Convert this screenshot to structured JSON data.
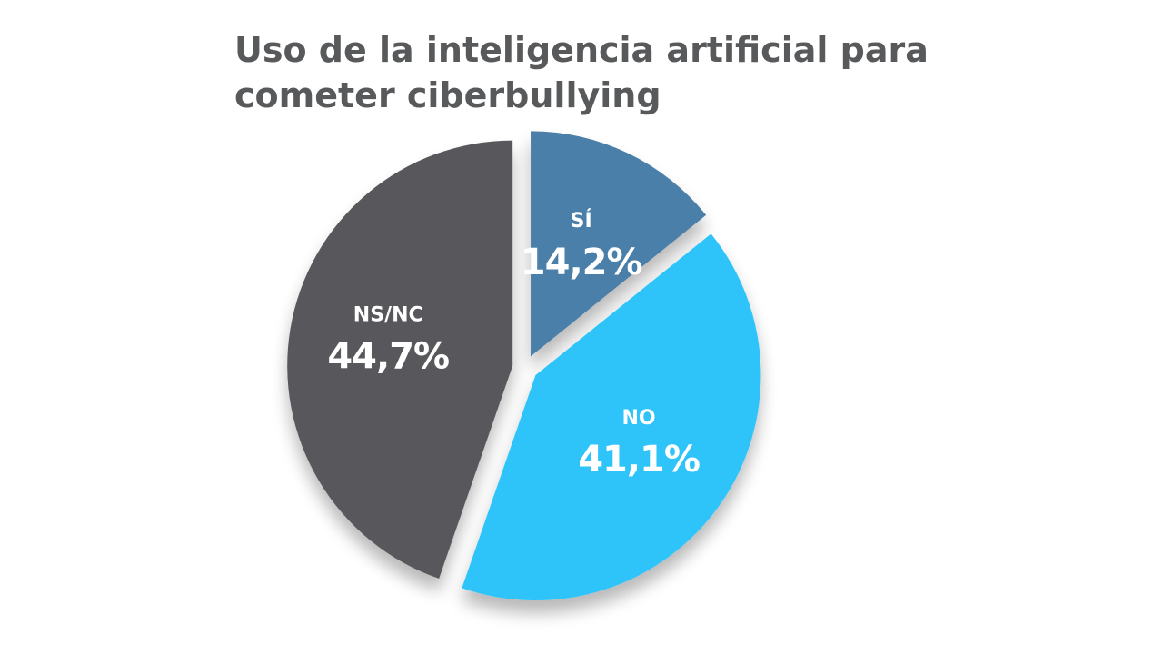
{
  "chart_data": {
    "type": "pie",
    "title": "Uso de la inteligencia artificial para cometer ciberbullying",
    "slices": [
      {
        "label": "SÍ",
        "value": 14.2,
        "display": "14,2%",
        "color": "#4a7fa8"
      },
      {
        "label": "NO",
        "value": 41.1,
        "display": "41,1%",
        "color": "#2ec4fa"
      },
      {
        "label": "NS/NC",
        "value": 44.7,
        "display": "44,7%",
        "color": "#58595b"
      }
    ]
  }
}
